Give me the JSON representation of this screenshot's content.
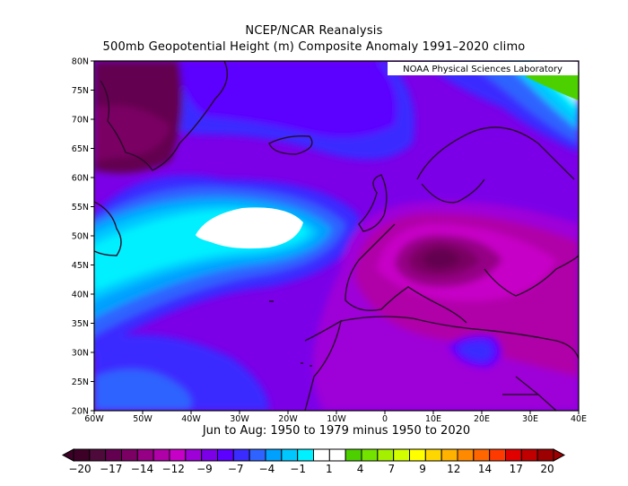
{
  "header": {
    "title_line1": "NCEP/NCAR Reanalysis",
    "title_line2": "500mb Geopotential Height (m) Composite Anomaly 1991–2020 climo"
  },
  "map": {
    "credit": "NOAA Physical Sciences Laboratory",
    "lat_labels": [
      "80N",
      "75N",
      "70N",
      "65N",
      "60N",
      "55N",
      "50N",
      "45N",
      "40N",
      "35N",
      "30N",
      "25N",
      "20N"
    ],
    "lon_labels": [
      "60W",
      "50W",
      "40W",
      "30W",
      "20W",
      "10W",
      "0",
      "10E",
      "20E",
      "30E",
      "40E"
    ],
    "extent": {
      "lon": [
        -60,
        40
      ],
      "lat": [
        20,
        80
      ]
    },
    "subtitle": "Jun to Aug: 1950 to 1979 minus 1950 to 2020"
  },
  "colorbar": {
    "labels": [
      "−20",
      "−17",
      "−14",
      "−12",
      "−9",
      "−7",
      "−4",
      "−1",
      "1",
      "4",
      "7",
      "9",
      "12",
      "14",
      "17",
      "20"
    ],
    "colors": [
      "#3d0027",
      "#4e0a3a",
      "#63004f",
      "#7a0064",
      "#950085",
      "#b000a8",
      "#c700c7",
      "#9e00d8",
      "#7b00e8",
      "#5c00ff",
      "#3a2cff",
      "#2f63ff",
      "#00a0ff",
      "#00c8ff",
      "#00f0ff",
      "#ffffff",
      "#ffffff",
      "#4cd000",
      "#73e300",
      "#a5f000",
      "#d2ff00",
      "#ffff00",
      "#ffd700",
      "#ffb200",
      "#ff8a00",
      "#ff6600",
      "#ff3a00",
      "#e00000",
      "#c00000",
      "#9c0000"
    ]
  }
}
